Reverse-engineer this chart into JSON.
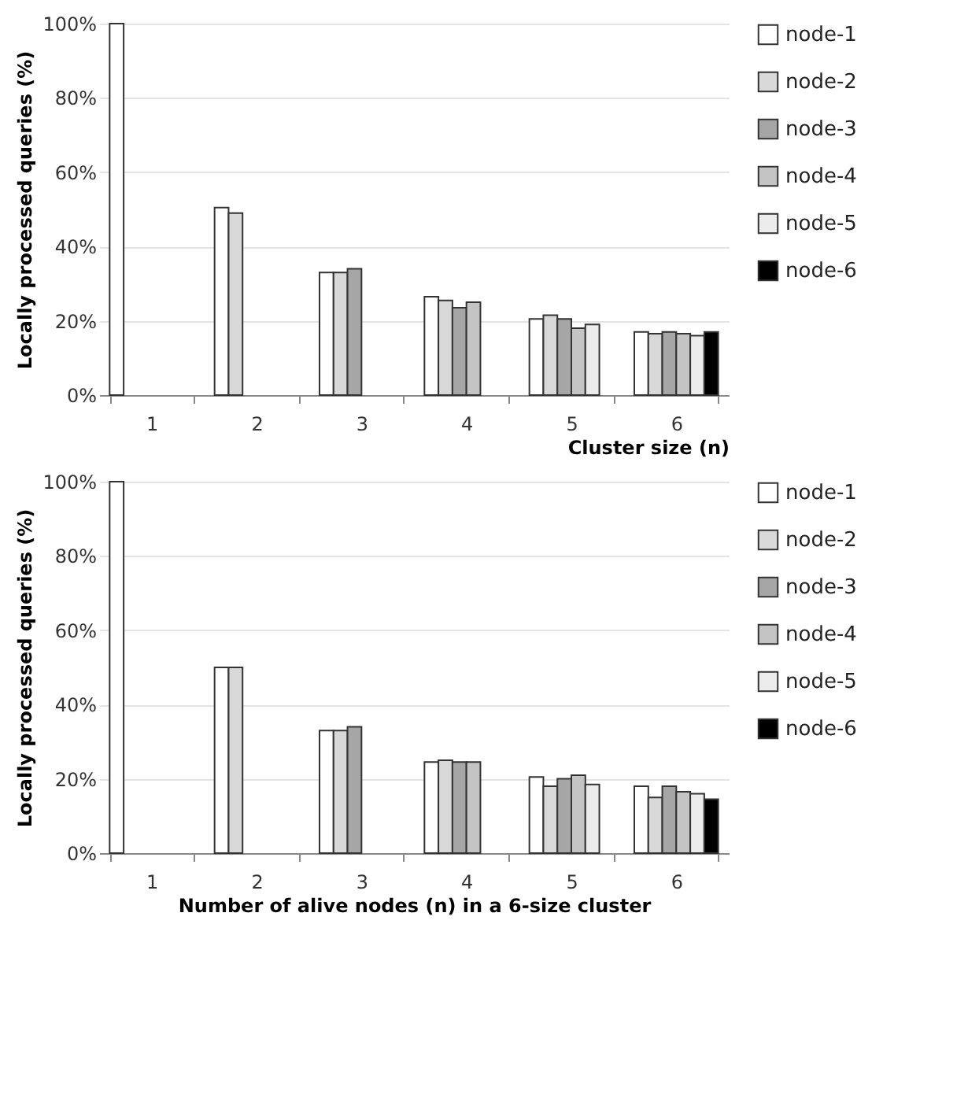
{
  "chart_data": [
    {
      "type": "bar",
      "xlabel": "Cluster size (n)",
      "ylabel": "Locally processed queries (%)",
      "categories": [
        "1",
        "2",
        "3",
        "4",
        "5",
        "6"
      ],
      "ylim": [
        0,
        100
      ],
      "yticks": [
        {
          "value": 0,
          "label": "0%"
        },
        {
          "value": 20,
          "label": "20%"
        },
        {
          "value": 40,
          "label": "40%"
        },
        {
          "value": 60,
          "label": "60%"
        },
        {
          "value": 80,
          "label": "80%"
        },
        {
          "value": 100,
          "label": "100%"
        }
      ],
      "grid": "y",
      "legend": "right",
      "series": [
        {
          "name": "node-1",
          "color": "#ffffff",
          "values": [
            100,
            50.5,
            33,
            26.5,
            20.5,
            17
          ]
        },
        {
          "name": "node-2",
          "color": "#d9d9d9",
          "values": [
            null,
            49,
            33,
            25.5,
            21.5,
            16.5
          ]
        },
        {
          "name": "node-3",
          "color": "#a6a6a6",
          "values": [
            null,
            null,
            34,
            23.5,
            20.5,
            17
          ]
        },
        {
          "name": "node-4",
          "color": "#c4c4c4",
          "values": [
            null,
            null,
            null,
            25,
            18,
            16.5
          ]
        },
        {
          "name": "node-5",
          "color": "#ececec",
          "values": [
            null,
            null,
            null,
            null,
            19,
            16
          ]
        },
        {
          "name": "node-6",
          "color": "#000000",
          "values": [
            null,
            null,
            null,
            null,
            null,
            17
          ]
        }
      ]
    },
    {
      "type": "bar",
      "xlabel": "Number of alive nodes (n) in a 6-size cluster",
      "ylabel": "Locally processed queries (%)",
      "categories": [
        "1",
        "2",
        "3",
        "4",
        "5",
        "6"
      ],
      "ylim": [
        0,
        100
      ],
      "yticks": [
        {
          "value": 0,
          "label": "0%"
        },
        {
          "value": 20,
          "label": "20%"
        },
        {
          "value": 40,
          "label": "40%"
        },
        {
          "value": 60,
          "label": "60%"
        },
        {
          "value": 80,
          "label": "80%"
        },
        {
          "value": 100,
          "label": "100%"
        }
      ],
      "grid": "y",
      "legend": "right",
      "series": [
        {
          "name": "node-1",
          "color": "#ffffff",
          "values": [
            100,
            50,
            33,
            24.5,
            20.5,
            18
          ]
        },
        {
          "name": "node-2",
          "color": "#d9d9d9",
          "values": [
            null,
            50,
            33,
            25,
            18,
            15
          ]
        },
        {
          "name": "node-3",
          "color": "#a6a6a6",
          "values": [
            null,
            null,
            34,
            24.5,
            20,
            18
          ]
        },
        {
          "name": "node-4",
          "color": "#c4c4c4",
          "values": [
            null,
            null,
            null,
            24.5,
            21,
            16.5
          ]
        },
        {
          "name": "node-5",
          "color": "#ececec",
          "values": [
            null,
            null,
            null,
            null,
            18.5,
            16
          ]
        },
        {
          "name": "node-6",
          "color": "#000000",
          "values": [
            null,
            null,
            null,
            null,
            null,
            14.5
          ]
        }
      ]
    }
  ]
}
